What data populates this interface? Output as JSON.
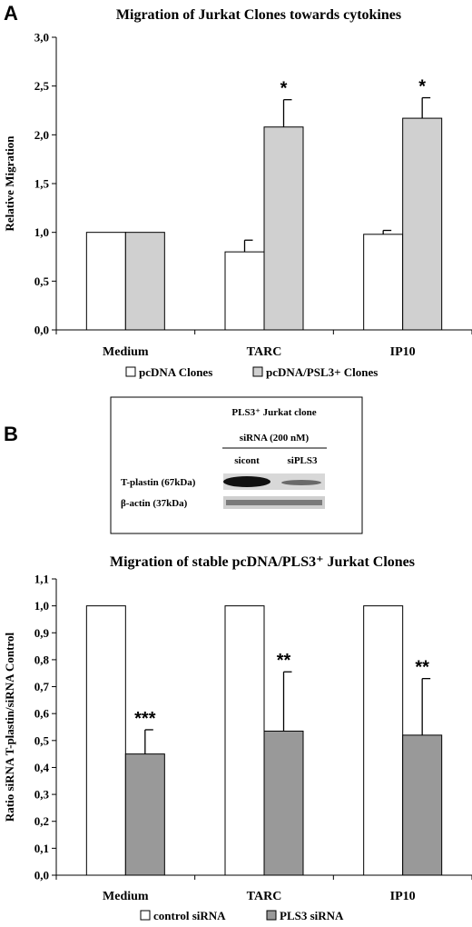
{
  "panels": {
    "a": "A",
    "b": "B"
  },
  "chart_data": [
    {
      "type": "bar",
      "title": "Migration of Jurkat Clones towards cytokines",
      "ylabel": "Relative Migration",
      "xlabel": "",
      "ylim": [
        0,
        3.0
      ],
      "yticks": [
        "0,0",
        "0,5",
        "1,0",
        "1,5",
        "2,0",
        "2,5",
        "3,0"
      ],
      "categories": [
        "Medium",
        "TARC",
        "IP10"
      ],
      "series": [
        {
          "name": "pcDNA Clones",
          "color": "#ffffff",
          "values": [
            1.0,
            0.8,
            0.98
          ],
          "errors": [
            0,
            0.12,
            0.04
          ]
        },
        {
          "name": "pcDNA/PSL3+ Clones",
          "color": "#d0d0d0",
          "values": [
            1.0,
            2.08,
            2.17
          ],
          "errors": [
            0,
            0.28,
            0.21
          ]
        }
      ],
      "annotations": [
        "",
        "*",
        "*"
      ],
      "legend": "bottom"
    },
    {
      "type": "bar",
      "title": "Migration of  stable pcDNA/PLS3⁺ Jurkat Clones",
      "ylabel": "Ratio siRNA T-plastin/siRNA Control",
      "xlabel": "",
      "ylim": [
        0,
        1.1
      ],
      "yticks": [
        "0,0",
        "0,1",
        "0,2",
        "0,3",
        "0,4",
        "0,5",
        "0,6",
        "0,7",
        "0,8",
        "0,9",
        "1,0",
        "1,1"
      ],
      "categories": [
        "Medium",
        "TARC",
        "IP10"
      ],
      "series": [
        {
          "name": "control siRNA",
          "color": "#ffffff",
          "values": [
            1.0,
            1.0,
            1.0
          ],
          "errors": [
            0,
            0,
            0
          ]
        },
        {
          "name": "PLS3 siRNA",
          "color": "#999999",
          "values": [
            0.45,
            0.535,
            0.52
          ],
          "errors": [
            0.09,
            0.22,
            0.21
          ]
        }
      ],
      "annotations": [
        "***",
        "**",
        "**"
      ],
      "legend": "bottom"
    }
  ],
  "blot": {
    "title": "PLS3⁺  Jurkat clone",
    "siRNA_label": "siRNA (200 nM)",
    "lanes": [
      "sicont",
      "siPLS3"
    ],
    "rows": [
      "T-plastin (67kDa)",
      "β-actin (37kDa)"
    ]
  }
}
